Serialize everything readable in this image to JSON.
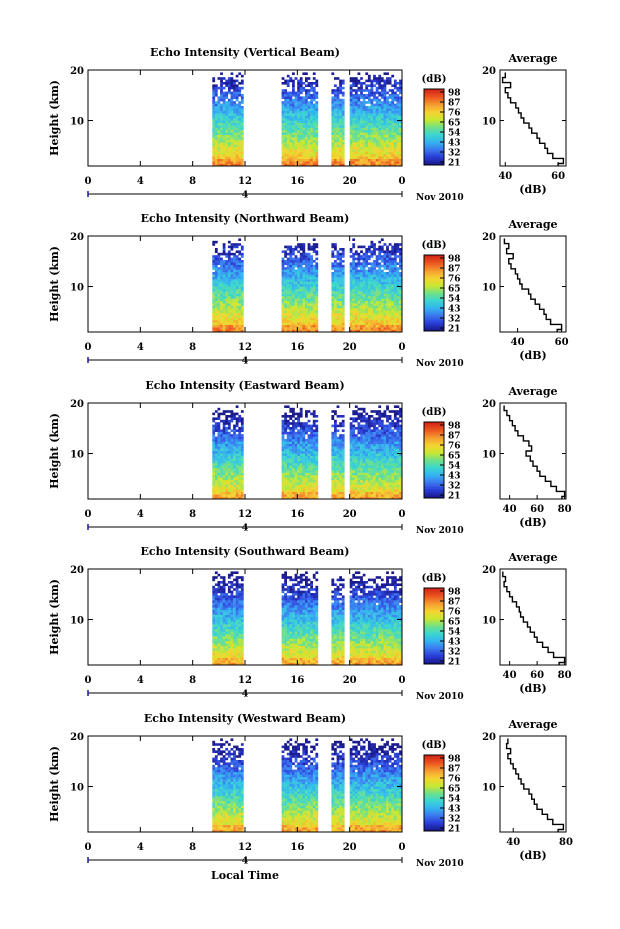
{
  "date_label": "Nov 2010",
  "xlabel": "Local Time",
  "x_ticks": [
    "0",
    "4",
    "8",
    "12",
    "16",
    "20",
    "0"
  ],
  "date_marker": "4",
  "colorbar": {
    "unit": "(dB)",
    "colors": [
      "#1a1a8c",
      "#2a3ed8",
      "#3b78f0",
      "#34b4f0",
      "#3ad6d0",
      "#6fe08a",
      "#c8e830",
      "#f5d430",
      "#f5a030",
      "#ee5a20",
      "#d62818"
    ]
  },
  "chart_data": [
    {
      "type": "heatmap",
      "title": "Echo Intensity (Vertical Beam)",
      "ylabel": "Height (km)",
      "y_ticks": [
        "20",
        "10"
      ],
      "xlim": [
        0,
        24
      ],
      "ylim": [
        1,
        20
      ],
      "colorbar_ticks": [
        "98",
        "87",
        "76",
        "65",
        "54",
        "43",
        "32",
        "21"
      ],
      "data_intervals_hours": [
        [
          9.5,
          11.8
        ],
        [
          14.8,
          17.5
        ],
        [
          18.6,
          19.5
        ],
        [
          20.0,
          24.0
        ]
      ],
      "profile": {
        "title": "Average",
        "xlabel": "(dB)",
        "x_ticks": [
          "40",
          "60"
        ],
        "y_ticks": [
          "20",
          "10"
        ],
        "xlim": [
          38,
          63
        ],
        "ylim": [
          1,
          20
        ],
        "height_km": [
          1,
          2,
          3,
          4,
          5,
          6,
          7,
          8,
          9,
          10,
          11,
          12,
          13,
          14,
          15,
          16,
          17,
          18,
          19
        ],
        "value_db": [
          60,
          62,
          58,
          56,
          55,
          53,
          52,
          50,
          49,
          47,
          46,
          45,
          44,
          42,
          41,
          40,
          42,
          39,
          40
        ]
      }
    },
    {
      "type": "heatmap",
      "title": "Echo Intensity (Northward Beam)",
      "ylabel": "Height (km)",
      "y_ticks": [
        "20",
        "10"
      ],
      "xlim": [
        0,
        24
      ],
      "ylim": [
        1,
        20
      ],
      "colorbar_ticks": [
        "98",
        "87",
        "76",
        "65",
        "54",
        "43",
        "32",
        "21"
      ],
      "data_intervals_hours": [
        [
          9.5,
          11.8
        ],
        [
          14.8,
          17.5
        ],
        [
          18.6,
          19.5
        ],
        [
          20.0,
          24.0
        ]
      ],
      "profile": {
        "title": "Average",
        "xlabel": "(dB)",
        "x_ticks": [
          "40",
          "60"
        ],
        "y_ticks": [
          "20",
          "10"
        ],
        "xlim": [
          32,
          62
        ],
        "ylim": [
          1,
          20
        ],
        "height_km": [
          1,
          2,
          3,
          4,
          5,
          6,
          7,
          8,
          9,
          10,
          11,
          12,
          13,
          14,
          15,
          16,
          17,
          18,
          19
        ],
        "value_db": [
          58,
          60,
          55,
          53,
          52,
          50,
          48,
          46,
          45,
          42,
          41,
          40,
          39,
          37,
          36,
          38,
          35,
          36,
          34
        ]
      }
    },
    {
      "type": "heatmap",
      "title": "Echo Intensity (Eastward Beam)",
      "ylabel": "Height (km)",
      "y_ticks": [
        "20",
        "10"
      ],
      "xlim": [
        0,
        24
      ],
      "ylim": [
        1,
        20
      ],
      "colorbar_ticks": [
        "98",
        "87",
        "76",
        "65",
        "54",
        "43",
        "32",
        "21"
      ],
      "data_intervals_hours": [
        [
          9.5,
          11.8
        ],
        [
          14.8,
          17.5
        ],
        [
          18.6,
          19.5
        ],
        [
          20.0,
          24.0
        ]
      ],
      "profile": {
        "title": "Average",
        "xlabel": "(dB)",
        "x_ticks": [
          "40",
          "60",
          "80"
        ],
        "y_ticks": [
          "20",
          "10"
        ],
        "xlim": [
          33,
          81
        ],
        "ylim": [
          1,
          20
        ],
        "height_km": [
          1,
          2,
          3,
          4,
          5,
          6,
          7,
          8,
          9,
          10,
          11,
          12,
          13,
          14,
          15,
          16,
          17,
          18,
          19
        ],
        "value_db": [
          78,
          80,
          74,
          70,
          66,
          62,
          60,
          57,
          55,
          52,
          56,
          54,
          50,
          46,
          44,
          42,
          40,
          38,
          36
        ]
      }
    },
    {
      "type": "heatmap",
      "title": "Echo Intensity (Southward Beam)",
      "ylabel": "Height (km)",
      "y_ticks": [
        "20",
        "10"
      ],
      "xlim": [
        0,
        24
      ],
      "ylim": [
        1,
        20
      ],
      "colorbar_ticks": [
        "98",
        "87",
        "76",
        "65",
        "54",
        "43",
        "32",
        "21"
      ],
      "data_intervals_hours": [
        [
          9.5,
          11.8
        ],
        [
          14.8,
          17.5
        ],
        [
          18.6,
          19.5
        ],
        [
          20.0,
          24.0
        ]
      ],
      "profile": {
        "title": "Average",
        "xlabel": "(dB)",
        "x_ticks": [
          "40",
          "60",
          "80"
        ],
        "y_ticks": [
          "20",
          "10"
        ],
        "xlim": [
          33,
          81
        ],
        "ylim": [
          1,
          20
        ],
        "height_km": [
          1,
          2,
          3,
          4,
          5,
          6,
          7,
          8,
          9,
          10,
          11,
          12,
          13,
          14,
          15,
          16,
          17,
          18,
          19
        ],
        "value_db": [
          76,
          80,
          72,
          68,
          64,
          60,
          58,
          55,
          53,
          50,
          48,
          47,
          45,
          42,
          40,
          38,
          36,
          37,
          35
        ]
      }
    },
    {
      "type": "heatmap",
      "title": "Echo Intensity (Westward Beam)",
      "ylabel": "Height (km)",
      "y_ticks": [
        "20",
        "10"
      ],
      "xlim": [
        0,
        24
      ],
      "ylim": [
        1,
        20
      ],
      "colorbar_ticks": [
        "98",
        "87",
        "76",
        "65",
        "54",
        "43",
        "32",
        "21"
      ],
      "data_intervals_hours": [
        [
          9.5,
          11.8
        ],
        [
          14.8,
          17.5
        ],
        [
          18.6,
          19.5
        ],
        [
          20.0,
          24.0
        ]
      ],
      "profile": {
        "title": "Average",
        "xlabel": "(dB)",
        "x_ticks": [
          "40",
          "80"
        ],
        "y_ticks": [
          "20",
          "10"
        ],
        "xlim": [
          30,
          80
        ],
        "ylim": [
          1,
          20
        ],
        "height_km": [
          1,
          2,
          3,
          4,
          5,
          6,
          7,
          8,
          9,
          10,
          11,
          12,
          13,
          14,
          15,
          16,
          17,
          18,
          19
        ],
        "value_db": [
          74,
          78,
          70,
          66,
          62,
          58,
          56,
          54,
          52,
          48,
          46,
          44,
          42,
          40,
          38,
          36,
          38,
          35,
          36
        ]
      }
    }
  ]
}
